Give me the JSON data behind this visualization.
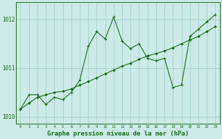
{
  "title": "Graphe pression niveau de la mer (hPa)",
  "bg_color": "#cceae7",
  "grid_color": "#aad4d0",
  "line_color": "#1a6b1a",
  "x_labels": [
    "0",
    "1",
    "2",
    "3",
    "4",
    "5",
    "6",
    "7",
    "8",
    "9",
    "10",
    "11",
    "12",
    "13",
    "14",
    "15",
    "16",
    "17",
    "18",
    "19",
    "20",
    "21",
    "22",
    "23"
  ],
  "series_jagged": [
    1010.15,
    1010.45,
    1010.45,
    1010.25,
    1010.4,
    1010.35,
    1010.5,
    1010.75,
    1011.45,
    1011.75,
    1011.6,
    1012.05,
    1011.55,
    1011.4,
    1011.5,
    1011.2,
    1011.15,
    1011.2,
    1010.6,
    1010.65,
    1011.65,
    1011.8,
    1011.95,
    1012.1
  ],
  "trend_line": [
    1010.15,
    1010.28,
    1010.4,
    1010.45,
    1010.5,
    1010.52,
    1010.57,
    1010.65,
    1010.72,
    1010.8,
    1010.88,
    1010.96,
    1011.04,
    1011.1,
    1011.18,
    1011.25,
    1011.3,
    1011.35,
    1011.42,
    1011.5,
    1011.58,
    1011.65,
    1011.75,
    1011.85
  ],
  "ylim_min": 1009.85,
  "ylim_max": 1012.35,
  "yticks": [
    1010,
    1011,
    1012
  ],
  "title_fontsize": 6.5
}
